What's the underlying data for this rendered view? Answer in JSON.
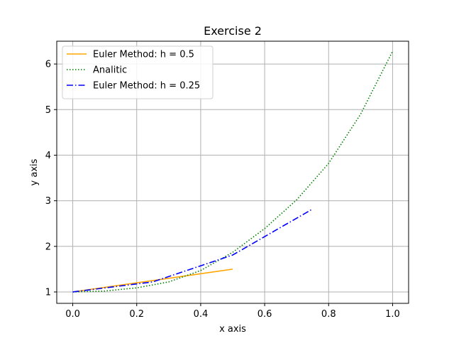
{
  "chart_data": {
    "type": "line",
    "title": "Exercise 2",
    "xlabel": "x axis",
    "ylabel": "y axis",
    "xlim": [
      -0.05,
      1.05
    ],
    "ylim": [
      0.75,
      6.5
    ],
    "x_ticks": [
      0.0,
      0.2,
      0.4,
      0.6,
      0.8,
      1.0
    ],
    "x_tick_labels": [
      "0.0",
      "0.2",
      "0.4",
      "0.6",
      "0.8",
      "1.0"
    ],
    "y_ticks": [
      1,
      2,
      3,
      4,
      5,
      6
    ],
    "y_tick_labels": [
      "1",
      "2",
      "3",
      "4",
      "5",
      "6"
    ],
    "grid": true,
    "legend_position": "top-left",
    "series": [
      {
        "name": "Euler Method: h = 0.5",
        "color": "#ffa500",
        "style": "solid",
        "x": [
          0.0,
          0.25,
          0.5
        ],
        "y": [
          1.0,
          1.25,
          1.5
        ]
      },
      {
        "name": "Analitic",
        "color": "#008000",
        "style": "dotted",
        "x": [
          0.0,
          0.1,
          0.2,
          0.3,
          0.4,
          0.5,
          0.6,
          0.7,
          0.8,
          0.9,
          1.0
        ],
        "y": [
          1.0,
          1.02,
          1.09,
          1.22,
          1.47,
          1.87,
          2.39,
          3.02,
          3.82,
          4.9,
          6.28
        ]
      },
      {
        "name": "Euler Method: h = 0.25",
        "color": "#0000ff",
        "style": "dashdot",
        "x": [
          0.0,
          0.25,
          0.5,
          0.75
        ],
        "y": [
          1.0,
          1.22,
          1.81,
          2.82
        ]
      }
    ]
  }
}
